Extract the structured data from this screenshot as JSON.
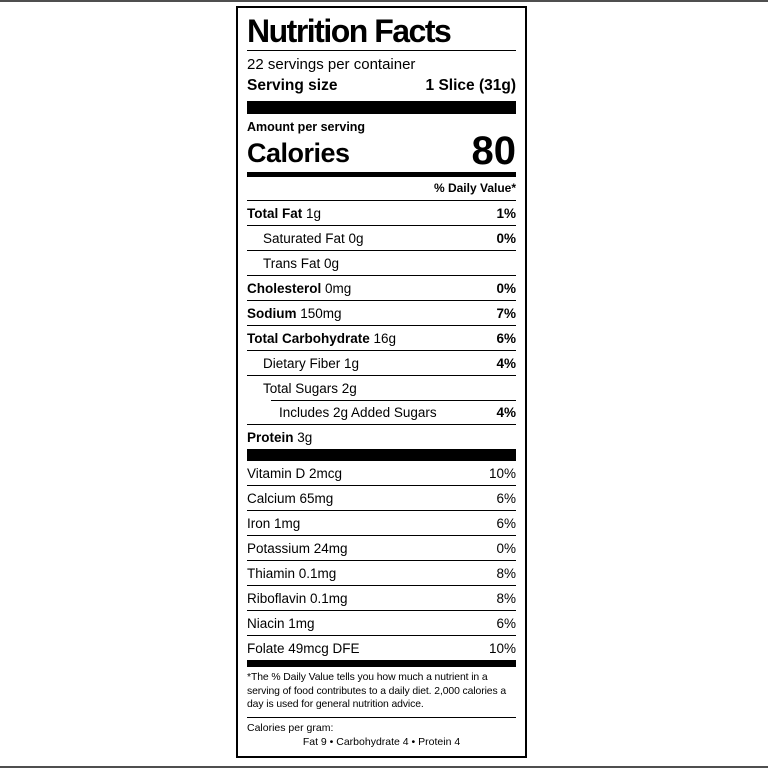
{
  "colors": {
    "text": "#000000",
    "border": "#000000",
    "background": "#ffffff",
    "edge_strip": "#4f4f4f"
  },
  "label": {
    "title": "Nutrition Facts",
    "servings_per_container": "22 servings per container",
    "serving_size_label": "Serving size",
    "serving_size_value": "1 Slice (31g)",
    "amount_per_serving": "Amount per serving",
    "calories_label": "Calories",
    "calories_value": "80",
    "daily_value_header": "% Daily Value*",
    "nutrients": [
      {
        "bold": "Total Fat",
        "rest": " 1g",
        "pct": "1%"
      },
      {
        "bold": "",
        "rest": "Saturated Fat 0g",
        "pct": "0%"
      },
      {
        "bold": "",
        "rest": "Trans Fat 0g",
        "pct": ""
      },
      {
        "bold": "Cholesterol",
        "rest": " 0mg",
        "pct": "0%"
      },
      {
        "bold": "Sodium",
        "rest": " 150mg",
        "pct": "7%"
      },
      {
        "bold": "Total Carbohydrate",
        "rest": " 16g",
        "pct": "6%"
      },
      {
        "bold": "",
        "rest": "Dietary Fiber 1g",
        "pct": "4%"
      },
      {
        "bold": "",
        "rest": "Total Sugars 2g",
        "pct": ""
      },
      {
        "bold": "",
        "rest": "Includes 2g Added Sugars",
        "pct": "4%"
      },
      {
        "bold": "Protein",
        "rest": " 3g",
        "pct": ""
      }
    ],
    "vitamins": [
      {
        "name": "Vitamin D 2mcg",
        "pct": "10%"
      },
      {
        "name": "Calcium 65mg",
        "pct": "6%"
      },
      {
        "name": "Iron 1mg",
        "pct": "6%"
      },
      {
        "name": "Potassium 24mg",
        "pct": "0%"
      },
      {
        "name": "Thiamin 0.1mg",
        "pct": "8%"
      },
      {
        "name": "Riboflavin 0.1mg",
        "pct": "8%"
      },
      {
        "name": "Niacin 1mg",
        "pct": "6%"
      },
      {
        "name": "Folate 49mcg DFE",
        "pct": "10%"
      }
    ],
    "footnote": "*The % Daily Value tells you how much a nutrient in a\nserving of food contributes to a daily diet. 2,000 calories a\nday is used for general nutrition advice.",
    "calories_per_gram_label": "Calories per gram:",
    "calories_per_gram_values": "Fat 9   •   Carbohydrate 4   •   Protein 4"
  }
}
